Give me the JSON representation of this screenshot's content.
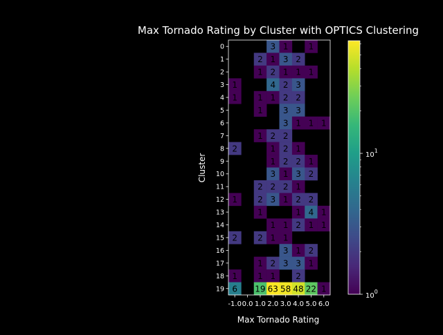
{
  "chart_data": {
    "type": "heatmap",
    "title": "Max Tornado Rating by Cluster with OPTICS Clustering",
    "xlabel": "Max Tornado Rating",
    "ylabel": "Cluster",
    "x_categories": [
      "-1.0",
      "0.0",
      "1.0",
      "2.0",
      "3.0",
      "4.0",
      "5.0",
      "6.0"
    ],
    "y_categories": [
      "0",
      "1",
      "2",
      "3",
      "4",
      "5",
      "6",
      "7",
      "8",
      "9",
      "10",
      "11",
      "12",
      "13",
      "14",
      "15",
      "16",
      "17",
      "18",
      "19"
    ],
    "values": [
      [
        null,
        null,
        null,
        3,
        1,
        null,
        1,
        null
      ],
      [
        null,
        null,
        2,
        1,
        3,
        2,
        null,
        null
      ],
      [
        null,
        null,
        1,
        2,
        1,
        1,
        1,
        null
      ],
      [
        1,
        null,
        null,
        4,
        2,
        3,
        null,
        null
      ],
      [
        1,
        null,
        1,
        1,
        2,
        2,
        null,
        null
      ],
      [
        null,
        null,
        1,
        null,
        3,
        3,
        null,
        null
      ],
      [
        null,
        null,
        null,
        null,
        3,
        1,
        1,
        1
      ],
      [
        null,
        null,
        1,
        2,
        2,
        null,
        null,
        null
      ],
      [
        2,
        null,
        null,
        1,
        2,
        1,
        null,
        null
      ],
      [
        null,
        null,
        null,
        1,
        2,
        2,
        1,
        null
      ],
      [
        null,
        null,
        null,
        3,
        1,
        3,
        2,
        null
      ],
      [
        null,
        null,
        2,
        2,
        2,
        1,
        null,
        null
      ],
      [
        1,
        null,
        2,
        3,
        1,
        2,
        2,
        null
      ],
      [
        null,
        null,
        1,
        null,
        null,
        1,
        4,
        1
      ],
      [
        null,
        null,
        null,
        1,
        1,
        2,
        1,
        1
      ],
      [
        2,
        null,
        2,
        1,
        1,
        null,
        null,
        null
      ],
      [
        null,
        null,
        null,
        null,
        3,
        1,
        2,
        null
      ],
      [
        null,
        null,
        1,
        2,
        3,
        3,
        1,
        null
      ],
      [
        1,
        null,
        1,
        1,
        null,
        2,
        null,
        null
      ],
      [
        6,
        null,
        19,
        63,
        58,
        48,
        22,
        1
      ]
    ],
    "color_scale": "viridis",
    "color_norm": "log",
    "clim": [
      1,
      63
    ],
    "colorbar_ticks": [
      "10^0",
      "10^1"
    ],
    "colormap_stops": [
      "#440154",
      "#482878",
      "#3e4a89",
      "#31688e",
      "#26828e",
      "#1f9e89",
      "#35b779",
      "#6ece58",
      "#b5de2b",
      "#fde725"
    ],
    "background": "#000000",
    "text_color": "#ffffff"
  }
}
